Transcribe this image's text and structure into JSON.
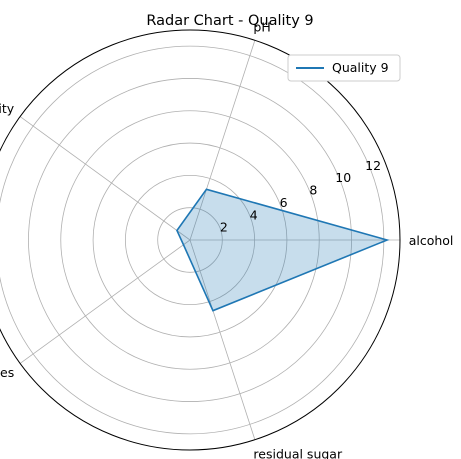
{
  "chart_data": {
    "type": "radar",
    "title": "Radar Chart - Quality 9",
    "categories": [
      "alcohol",
      "pH",
      "density",
      "sulphates",
      "residual sugar"
    ],
    "series": [
      {
        "name": "Quality 9",
        "values": [
          12.2,
          3.3,
          1.0,
          0.5,
          4.6
        ]
      }
    ],
    "r_ticks": [
      "2",
      "4",
      "6",
      "8",
      "10",
      "12"
    ],
    "r_tick_values": [
      2,
      4,
      6,
      8,
      10,
      12
    ],
    "rlim": [
      0,
      13
    ],
    "grid": true,
    "legend_position": "top-right",
    "colors": {
      "series": "#1f77b4",
      "fill": "#1f77b4",
      "grid": "#b0b0b0",
      "frame": "#000000"
    }
  }
}
